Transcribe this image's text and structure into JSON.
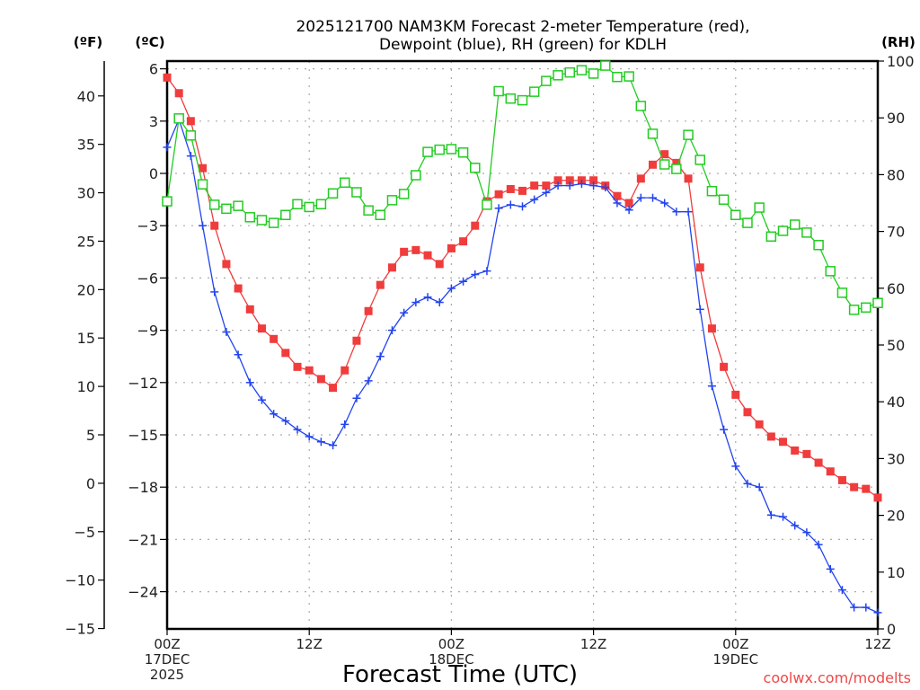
{
  "colors": {
    "temperature": "#f03c3c",
    "dewpoint": "#2244ee",
    "rh": "#22cc22",
    "credit": "#f04848"
  },
  "chart_data": {
    "type": "line",
    "title": [
      "2025121700 NAM3KM Forecast 2-meter Temperature (red),",
      "Dewpoint (blue), RH (green) for KDLH"
    ],
    "xlabel": "Forecast Time (UTC)",
    "credit": "coolwx.com/modelts",
    "unit_labels": {
      "fahrenheit": "(ºF)",
      "celsius": "(ºC)",
      "rh": "(RH)"
    },
    "x_unit": "forecast hour",
    "xlim": [
      0,
      60
    ],
    "x_ticks": [
      {
        "hour": 0,
        "lines": [
          "00Z",
          "17DEC",
          "2025"
        ]
      },
      {
        "hour": 12,
        "lines": [
          "12Z"
        ]
      },
      {
        "hour": 24,
        "lines": [
          "00Z",
          "18DEC"
        ]
      },
      {
        "hour": 36,
        "lines": [
          "12Z"
        ]
      },
      {
        "hour": 48,
        "lines": [
          "00Z",
          "19DEC"
        ]
      },
      {
        "hour": 60,
        "lines": [
          "12Z"
        ]
      }
    ],
    "ylim_celsius": [
      -26.1,
      6.4
    ],
    "y_ticks_celsius": [
      "6",
      "3",
      "0",
      "−3",
      "−6",
      "−9",
      "−12",
      "−15",
      "−18",
      "−21",
      "−24"
    ],
    "y_ticks_celsius_values": [
      6,
      3,
      0,
      -3,
      -6,
      -9,
      -12,
      -15,
      -18,
      -21,
      -24
    ],
    "y_ticks_fahrenheit": [
      "40",
      "35",
      "30",
      "25",
      "20",
      "15",
      "10",
      "5",
      "0",
      "−5",
      "−10",
      "−15"
    ],
    "y_ticks_fahrenheit_values": [
      40,
      35,
      30,
      25,
      20,
      15,
      10,
      5,
      0,
      -5,
      -10,
      -15
    ],
    "ylim_rh": [
      0,
      100
    ],
    "y_ticks_rh": [
      "100",
      "90",
      "80",
      "70",
      "60",
      "50",
      "40",
      "30",
      "20",
      "10",
      "0"
    ],
    "y_ticks_rh_values": [
      100,
      90,
      80,
      70,
      60,
      50,
      40,
      30,
      20,
      10,
      0
    ],
    "grid": true,
    "series": [
      {
        "name": "Temperature",
        "axis": "celsius",
        "marker": "filled-square",
        "values": [
          5.5,
          4.6,
          3.0,
          0.3,
          -3.0,
          -5.2,
          -6.6,
          -7.8,
          -8.9,
          -9.5,
          -10.3,
          -11.1,
          -11.3,
          -11.8,
          -12.3,
          -11.3,
          -9.6,
          -7.9,
          -6.4,
          -5.4,
          -4.5,
          -4.4,
          -4.7,
          -5.2,
          -4.3,
          -3.9,
          -3.0,
          -1.6,
          -1.2,
          -0.9,
          -1.0,
          -0.7,
          -0.7,
          -0.4,
          -0.4,
          -0.4,
          -0.4,
          -0.7,
          -1.3,
          -1.7,
          -0.3,
          0.5,
          1.1,
          0.6,
          -0.3,
          -5.4,
          -8.9,
          -11.1,
          -12.7,
          -13.7,
          -14.4,
          -15.1,
          -15.4,
          -15.9,
          -16.1,
          -16.6,
          -17.1,
          -17.6,
          -18.0,
          -18.1,
          -18.6
        ]
      },
      {
        "name": "Dewpoint",
        "axis": "celsius",
        "marker": "plus",
        "values": [
          1.5,
          3.1,
          1.0,
          -3.0,
          -6.8,
          -9.1,
          -10.4,
          -12.0,
          -13.0,
          -13.8,
          -14.2,
          -14.7,
          -15.1,
          -15.4,
          -15.6,
          -14.4,
          -12.9,
          -11.9,
          -10.5,
          -9.0,
          -8.0,
          -7.4,
          -7.1,
          -7.4,
          -6.6,
          -6.2,
          -5.8,
          -5.6,
          -2.0,
          -1.8,
          -1.9,
          -1.5,
          -1.1,
          -0.7,
          -0.7,
          -0.6,
          -0.7,
          -0.8,
          -1.7,
          -2.1,
          -1.4,
          -1.4,
          -1.7,
          -2.2,
          -2.2,
          -7.8,
          -12.2,
          -14.7,
          -16.8,
          -17.8,
          -18.0,
          -19.6,
          -19.7,
          -20.2,
          -20.6,
          -21.3,
          -22.7,
          -23.9,
          -24.9,
          -24.9,
          -25.2
        ]
      },
      {
        "name": "RH",
        "axis": "rh",
        "marker": "open-square",
        "values": [
          75.3,
          89.9,
          86.9,
          78.3,
          74.7,
          74.0,
          74.5,
          72.5,
          72.0,
          71.5,
          72.9,
          74.8,
          74.3,
          74.8,
          76.7,
          78.6,
          76.9,
          73.7,
          72.9,
          75.5,
          76.6,
          79.9,
          84.0,
          84.4,
          84.5,
          83.9,
          81.2,
          74.7,
          94.7,
          93.4,
          93.1,
          94.6,
          96.5,
          97.5,
          98.0,
          98.4,
          97.8,
          99.2,
          97.2,
          97.3,
          92.1,
          87.2,
          81.8,
          81.0,
          87.0,
          82.6,
          77.1,
          75.6,
          72.9,
          71.5,
          74.2,
          69.1,
          70.1,
          71.2,
          69.8,
          67.6,
          63.0,
          59.2,
          56.2,
          56.6,
          57.4
        ]
      }
    ]
  }
}
